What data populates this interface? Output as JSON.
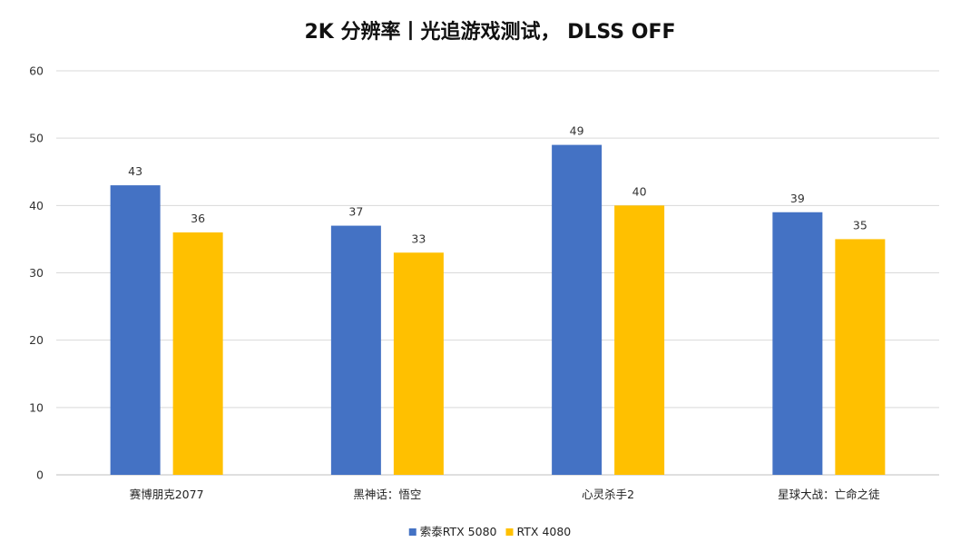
{
  "chart_data": {
    "type": "bar",
    "title": "2K 分辨率丨光追游戏测试， DLSS OFF",
    "categories": [
      "赛博朋克2077",
      "黑神话：悟空",
      "心灵杀手2",
      "星球大战：亡命之徒"
    ],
    "series": [
      {
        "name": "索泰RTX 5080",
        "values": [
          43,
          37,
          49,
          39
        ],
        "color": "#4472C4"
      },
      {
        "name": "RTX 4080",
        "values": [
          36,
          33,
          40,
          35
        ],
        "color": "#FFC000"
      }
    ],
    "ylim": [
      0,
      60
    ],
    "yticks": [
      0,
      10,
      20,
      30,
      40,
      50,
      60
    ],
    "grid": true,
    "legend": "bottom",
    "gridColor": "#d9d9d9"
  }
}
